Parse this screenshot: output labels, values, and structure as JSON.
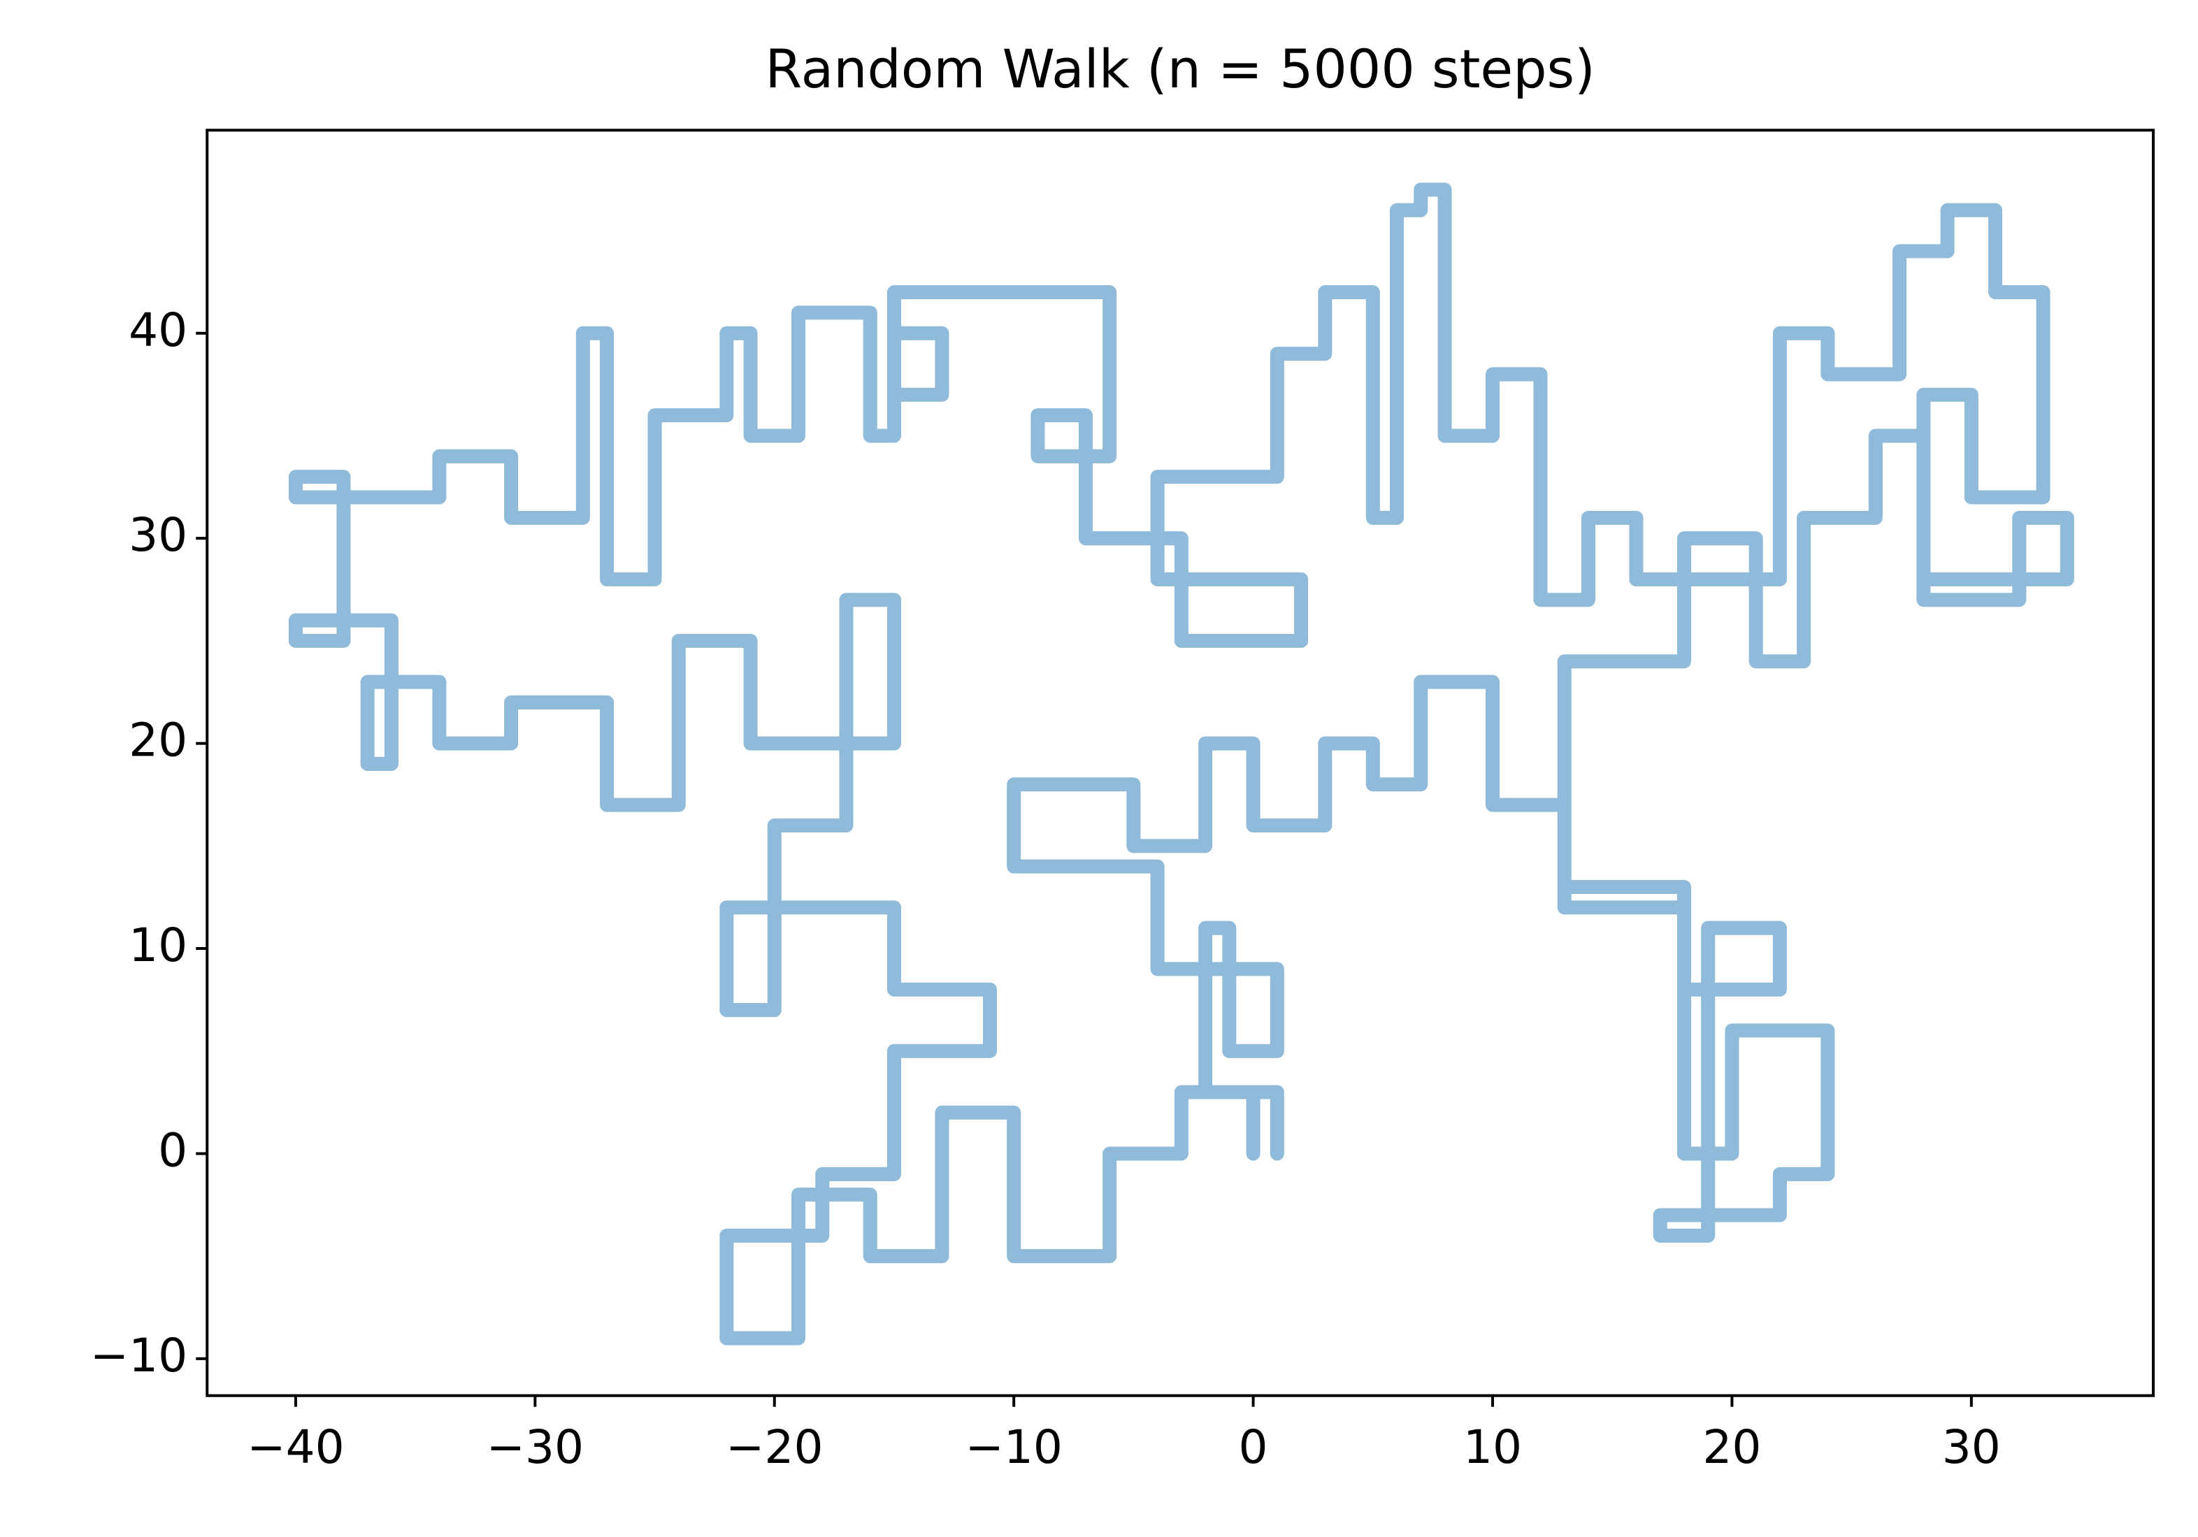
{
  "chart_data": {
    "type": "line",
    "title": "Random Walk (n = 5000 steps)",
    "color": "#8fbad9",
    "x": [
      0,
      0,
      -3,
      -3,
      -6,
      -6,
      -10,
      -10,
      -13,
      -13,
      -16,
      -16,
      -19,
      -19,
      -22,
      -22,
      -18,
      -18,
      -15,
      -15,
      -11,
      -11,
      -15,
      -15,
      -22,
      -22,
      -20,
      -20,
      -17,
      -17,
      -15,
      -15,
      -21,
      -21,
      -24,
      -24,
      -27,
      -27,
      -31,
      -31,
      -34,
      -34,
      -37,
      -37,
      -36,
      -36,
      -40,
      -40,
      -38,
      -38,
      -40,
      -40,
      -34,
      -34,
      -31,
      -31,
      -28,
      -28,
      -27,
      -27,
      -25,
      -25,
      -22,
      -22,
      -21,
      -21,
      -19,
      -19,
      -16,
      -16,
      -15,
      -15,
      -13,
      -13,
      -15,
      -15,
      -6,
      -6,
      -9,
      -9,
      -7,
      -7,
      -3,
      -3,
      2,
      2,
      -4,
      -4,
      1,
      1,
      3,
      3,
      5,
      5,
      6,
      6,
      7,
      7,
      8,
      8,
      10,
      10,
      12,
      12,
      14,
      14,
      16,
      16,
      22,
      22,
      24,
      24,
      27,
      27,
      29,
      29,
      31,
      31,
      33,
      33,
      30,
      30,
      28,
      28,
      34,
      34,
      32,
      32,
      28,
      28,
      26,
      26,
      23,
      23,
      21,
      21,
      18,
      18,
      13,
      13,
      18,
      18,
      22,
      22,
      19,
      19,
      17,
      17,
      22,
      22,
      24,
      24,
      20,
      20,
      18,
      18,
      13,
      13,
      10,
      10,
      7,
      7,
      5,
      5,
      3,
      3,
      0,
      0,
      -2,
      -2,
      -5,
      -5,
      -10,
      -10,
      -4,
      -4,
      1,
      1,
      -1,
      -1,
      -2,
      -2,
      1,
      1
    ],
    "values": [
      0,
      3,
      3,
      0,
      0,
      -5,
      -5,
      2,
      2,
      -5,
      -5,
      -2,
      -2,
      -9,
      -9,
      -4,
      -4,
      -1,
      -1,
      5,
      5,
      8,
      8,
      12,
      12,
      7,
      7,
      16,
      16,
      27,
      27,
      20,
      20,
      25,
      25,
      17,
      17,
      22,
      22,
      20,
      20,
      23,
      23,
      19,
      19,
      26,
      26,
      25,
      25,
      33,
      33,
      32,
      32,
      34,
      34,
      31,
      31,
      40,
      40,
      28,
      28,
      36,
      36,
      40,
      40,
      35,
      35,
      41,
      41,
      35,
      35,
      40,
      40,
      37,
      37,
      42,
      42,
      34,
      34,
      36,
      36,
      30,
      30,
      25,
      25,
      28,
      28,
      33,
      33,
      39,
      39,
      42,
      42,
      31,
      31,
      46,
      46,
      47,
      47,
      35,
      35,
      38,
      38,
      27,
      27,
      31,
      31,
      28,
      28,
      40,
      40,
      38,
      38,
      44,
      44,
      46,
      46,
      42,
      42,
      32,
      32,
      37,
      37,
      28,
      28,
      31,
      31,
      27,
      27,
      35,
      35,
      31,
      31,
      24,
      24,
      30,
      30,
      24,
      24,
      13,
      13,
      8,
      8,
      11,
      11,
      -4,
      -4,
      -3,
      -3,
      -1,
      -1,
      6,
      6,
      0,
      0,
      12,
      12,
      17,
      17,
      23,
      23,
      18,
      18,
      20,
      20,
      16,
      16,
      20,
      20,
      15,
      15,
      18,
      18,
      14,
      14,
      9,
      9,
      5,
      5,
      11,
      11,
      3,
      3,
      0
    ],
    "xlim": [
      -43.7,
      37.6
    ],
    "ylim": [
      -11.8,
      49.9
    ],
    "xticks": [
      {
        "value": -40,
        "label": "−40"
      },
      {
        "value": -30,
        "label": "−30"
      },
      {
        "value": -20,
        "label": "−20"
      },
      {
        "value": -10,
        "label": "−10"
      },
      0,
      10,
      20,
      30
    ],
    "yticks": [
      {
        "value": -10,
        "label": "−10"
      },
      0,
      10,
      20,
      30,
      40
    ]
  }
}
